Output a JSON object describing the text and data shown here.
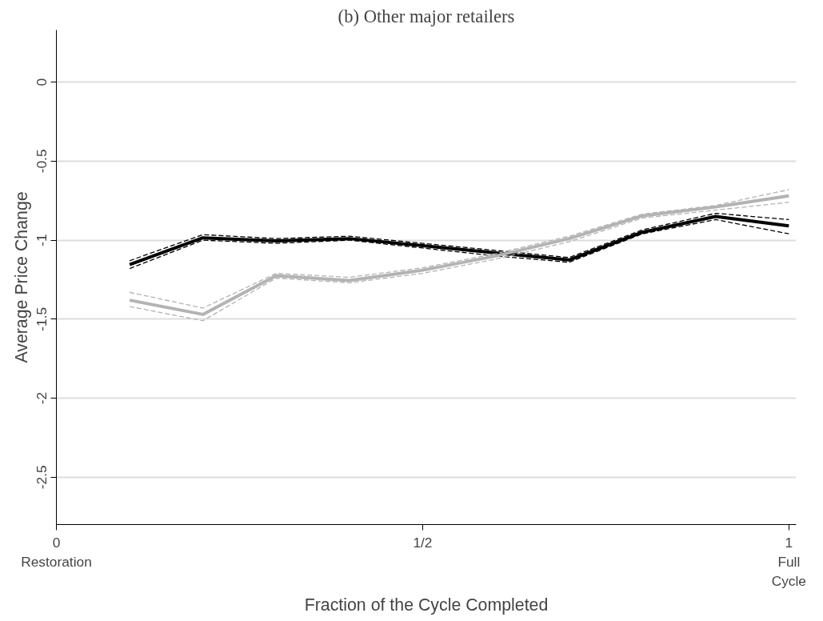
{
  "chart_data": {
    "type": "line",
    "title": "(b) Other major retailers",
    "xlabel": "Fraction of the Cycle Completed",
    "ylabel": "Average Price Change",
    "x": [
      0.1,
      0.2,
      0.3,
      0.4,
      0.5,
      0.6,
      0.7,
      0.8,
      0.9,
      1.0
    ],
    "series": [
      {
        "color": "#000000",
        "line_style": "solid",
        "values": [
          -1.155,
          -0.985,
          -1.005,
          -0.99,
          -1.035,
          -1.08,
          -1.125,
          -0.95,
          -0.85,
          -0.91
        ]
      },
      {
        "color": "#000000",
        "line_style": "dashed",
        "values": [
          -1.18,
          -1.0,
          -1.02,
          -1.0,
          -1.05,
          -1.1,
          -1.14,
          -0.96,
          -0.87,
          -0.96
        ]
      },
      {
        "color": "#000000",
        "line_style": "dashed",
        "values": [
          -1.13,
          -0.965,
          -0.99,
          -0.975,
          -1.02,
          -1.065,
          -1.11,
          -0.935,
          -0.83,
          -0.87
        ]
      },
      {
        "color": "#b3b3b3",
        "line_style": "solid",
        "values": [
          -1.38,
          -1.47,
          -1.225,
          -1.255,
          -1.19,
          -1.1,
          -0.99,
          -0.846,
          -0.79,
          -0.72
        ]
      },
      {
        "color": "#b3b3b3",
        "line_style": "dashed",
        "values": [
          -1.42,
          -1.51,
          -1.24,
          -1.27,
          -1.21,
          -1.12,
          -1.01,
          -0.86,
          -0.81,
          -0.76
        ]
      },
      {
        "color": "#b3b3b3",
        "line_style": "dashed",
        "values": [
          -1.33,
          -1.43,
          -1.21,
          -1.235,
          -1.175,
          -1.085,
          -0.975,
          -0.835,
          -0.78,
          -0.68
        ]
      }
    ],
    "xlim": [
      0,
      1.01
    ],
    "ylim": [
      -2.8,
      0.33
    ],
    "xticks": [
      {
        "value": 0,
        "label": "0\nRestoration"
      },
      {
        "value": 0.5,
        "label": "1/2"
      },
      {
        "value": 1,
        "label": "1\nFull\nCycle"
      }
    ],
    "yticks": [
      0,
      -0.5,
      -1,
      -1.5,
      -2,
      -2.5
    ],
    "grid": "y",
    "marker": "none"
  }
}
